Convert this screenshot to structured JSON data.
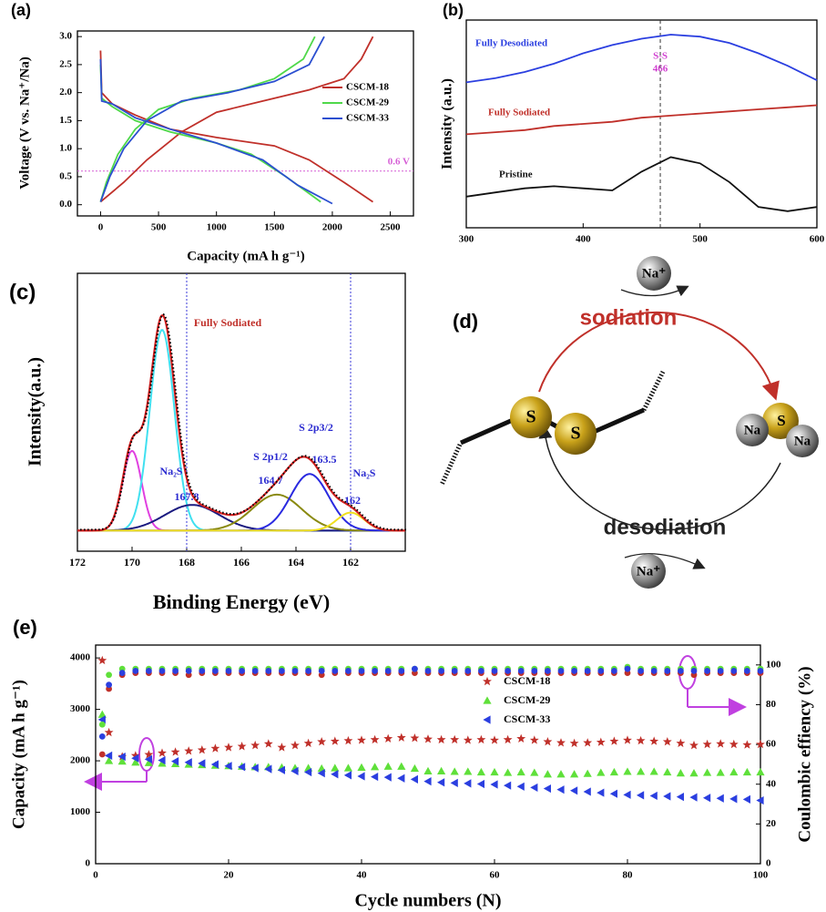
{
  "chart_data": [
    {
      "type": "line",
      "panel_label": "(a)",
      "xlabel": "Capacity (mA h g⁻¹)",
      "ylabel": "Voltage (V vs. Na⁺/Na)",
      "xlim": [
        -200,
        2700
      ],
      "ylim": [
        -0.2,
        3.1
      ],
      "xticks": [
        0,
        500,
        1000,
        1500,
        2000,
        2500
      ],
      "yticks": [
        {
          "value": 0,
          "label": "0.0"
        },
        0.5,
        {
          "value": 1,
          "label": "1.0"
        },
        1.5,
        {
          "value": 2,
          "label": "2.0"
        },
        2.5,
        {
          "value": 3,
          "label": "3.0"
        }
      ],
      "hline": {
        "value": 0.6,
        "label": "0.6 V",
        "color": "#d65fd6"
      },
      "legend": "upper right",
      "series": [
        {
          "name": "CSCM-18",
          "color": "#c0302a",
          "x": [
            0,
            10,
            100,
            300,
            600,
            1000,
            1500,
            1800,
            2100,
            2350,
            null,
            0,
            200,
            400,
            700,
            1000,
            1400,
            1800,
            2100,
            2250,
            2350
          ],
          "values": [
            2.75,
            2.0,
            1.8,
            1.6,
            1.35,
            1.2,
            1.05,
            0.8,
            0.4,
            0.05,
            null,
            0.05,
            0.4,
            0.8,
            1.3,
            1.65,
            1.85,
            2.05,
            2.25,
            2.6,
            3.0
          ]
        },
        {
          "name": "CSCM-29",
          "color": "#4fd84a",
          "x": [
            0,
            10,
            100,
            300,
            600,
            1000,
            1300,
            1600,
            1900,
            null,
            0,
            50,
            150,
            300,
            500,
            800,
            1200,
            1500,
            1750,
            1850
          ],
          "values": [
            2.5,
            1.9,
            1.75,
            1.5,
            1.3,
            1.1,
            0.9,
            0.5,
            0.05,
            null,
            0.05,
            0.4,
            0.9,
            1.35,
            1.7,
            1.9,
            2.05,
            2.25,
            2.6,
            3.0
          ]
        },
        {
          "name": "CSCM-33",
          "color": "#2b4fd0",
          "x": [
            0,
            10,
            100,
            300,
            600,
            1000,
            1400,
            1700,
            2000,
            null,
            0,
            80,
            200,
            400,
            700,
            1100,
            1500,
            1800,
            1930
          ],
          "values": [
            2.6,
            1.85,
            1.8,
            1.55,
            1.35,
            1.1,
            0.8,
            0.35,
            0.02,
            null,
            0.05,
            0.5,
            1.0,
            1.5,
            1.85,
            2.0,
            2.2,
            2.5,
            3.0
          ]
        }
      ]
    },
    {
      "type": "line",
      "panel_label": "(b)",
      "ylabel": "Intensity (a.u.)",
      "xlim": [
        300,
        600
      ],
      "ylim": [
        0,
        10
      ],
      "xticks": [
        300,
        400,
        500,
        600
      ],
      "annotation": {
        "x": 466,
        "label": "S-S",
        "color": "#d040d0"
      },
      "x": [
        300,
        325,
        350,
        375,
        400,
        425,
        450,
        475,
        500,
        525,
        550,
        575,
        600
      ],
      "series": [
        {
          "name": "Fully Desodiated",
          "color": "#2b3fe0",
          "values": [
            7.0,
            7.2,
            7.5,
            7.9,
            8.4,
            8.8,
            9.1,
            9.3,
            9.2,
            8.9,
            8.4,
            7.8,
            7.1
          ]
        },
        {
          "name": "Fully Sodiated",
          "color": "#c0302a",
          "values": [
            4.5,
            4.6,
            4.7,
            4.9,
            5.0,
            5.1,
            5.3,
            5.4,
            5.5,
            5.6,
            5.7,
            5.8,
            5.9
          ]
        },
        {
          "name": "Pristine",
          "color": "#111111",
          "values": [
            1.5,
            1.7,
            1.9,
            2.0,
            1.9,
            1.8,
            2.7,
            3.4,
            3.1,
            2.2,
            1.0,
            0.8,
            1.0
          ]
        }
      ]
    },
    {
      "type": "peaks",
      "panel_label": "(c)",
      "xlabel": "Binding Energy (eV)",
      "ylabel": "Intensity(a.u.)",
      "xlim": [
        172,
        160
      ],
      "ylim": [
        -8,
        100
      ],
      "xticks": [
        172,
        170,
        168,
        166,
        164,
        162
      ],
      "annotation": "Fully Sodiated",
      "fit_color": "#d42020",
      "data_color": "#000000",
      "vlines": [
        168,
        162
      ],
      "vline_color": "#3a3ad8",
      "series": [
        {
          "color": "#e040e0",
          "center": 170.0,
          "height": 31,
          "width": 0.35
        },
        {
          "color": "#40e0f0",
          "center": 168.9,
          "height": 78,
          "width": 0.45
        },
        {
          "name": "Na₂S",
          "color": "#1a1a80",
          "center": 167.8,
          "height": 10,
          "width": 1.0
        },
        {
          "name": "S 2p1/2",
          "color": "#8a8a10",
          "center": 164.7,
          "height": 14,
          "width": 0.9
        },
        {
          "name": "S 2p3/2",
          "color": "#2a2ae0",
          "center": 163.5,
          "height": 22,
          "width": 0.7
        },
        {
          "name": "Na₂S",
          "color": "#f0e020",
          "center": 162,
          "height": 7,
          "width": 0.5
        }
      ]
    },
    {
      "type": "scatter",
      "panel_label": "(e)",
      "xlabel": "Cycle numbers (N)",
      "ylabel": "Capacity (mA h g⁻¹)",
      "y2label": "Coulombic effiency (%)",
      "xlim": [
        0,
        100
      ],
      "ylim": [
        0,
        4250
      ],
      "y2lim": [
        0,
        110
      ],
      "xticks": [
        0,
        20,
        40,
        60,
        80,
        100
      ],
      "yticks": [
        0,
        1000,
        2000,
        3000,
        4000
      ],
      "y2ticks": [
        0,
        20,
        40,
        60,
        80,
        100
      ],
      "legend": "upper right",
      "x": [
        1,
        2,
        4,
        6,
        8,
        10,
        12,
        14,
        16,
        18,
        20,
        22,
        24,
        26,
        28,
        30,
        32,
        34,
        36,
        38,
        40,
        42,
        44,
        46,
        48,
        50,
        52,
        54,
        56,
        58,
        60,
        62,
        64,
        66,
        68,
        70,
        72,
        74,
        76,
        78,
        80,
        82,
        84,
        86,
        88,
        90,
        92,
        94,
        96,
        98,
        100
      ],
      "series": [
        {
          "name": "CSCM-18",
          "color": "#c0302a",
          "marker": "star",
          "values": [
            3950,
            2550,
            2080,
            2100,
            2120,
            2150,
            2170,
            2190,
            2210,
            2240,
            2260,
            2280,
            2300,
            2330,
            2260,
            2300,
            2340,
            2370,
            2380,
            2390,
            2400,
            2410,
            2430,
            2450,
            2440,
            2420,
            2410,
            2410,
            2400,
            2410,
            2400,
            2410,
            2430,
            2400,
            2370,
            2350,
            2340,
            2350,
            2360,
            2380,
            2400,
            2390,
            2380,
            2370,
            2340,
            2300,
            2320,
            2330,
            2320,
            2310,
            2320
          ]
        },
        {
          "name": "CSCM-29",
          "color": "#5fe03a",
          "marker": "triangle",
          "values": [
            2900,
            2000,
            1990,
            1970,
            1960,
            1950,
            1940,
            1930,
            1920,
            1910,
            1900,
            1890,
            1880,
            1880,
            1870,
            1860,
            1860,
            1850,
            1860,
            1860,
            1870,
            1880,
            1890,
            1890,
            1850,
            1800,
            1800,
            1790,
            1790,
            1780,
            1780,
            1770,
            1780,
            1770,
            1740,
            1740,
            1740,
            1750,
            1770,
            1780,
            1790,
            1790,
            1790,
            1780,
            1760,
            1760,
            1770,
            1770,
            1780,
            1780,
            1780
          ]
        },
        {
          "name": "CSCM-33",
          "color": "#2b3fe0",
          "marker": "left-triangle",
          "values": [
            2800,
            2100,
            2080,
            2050,
            2030,
            2010,
            1990,
            1970,
            1950,
            1930,
            1900,
            1880,
            1860,
            1840,
            1820,
            1800,
            1780,
            1760,
            1740,
            1720,
            1700,
            1690,
            1680,
            1660,
            1640,
            1600,
            1580,
            1570,
            1560,
            1550,
            1540,
            1520,
            1500,
            1480,
            1460,
            1440,
            1420,
            1400,
            1380,
            1360,
            1340,
            1330,
            1320,
            1310,
            1300,
            1290,
            1280,
            1270,
            1260,
            1250,
            1230
          ]
        },
        {
          "color": "#c0302a",
          "marker": "circle",
          "axis": "y2",
          "values": [
            55,
            88,
            95,
            96,
            96,
            96,
            96,
            95,
            96,
            96,
            96,
            96,
            96,
            96,
            96,
            96,
            96,
            95,
            96,
            96,
            96,
            96,
            96,
            96,
            96,
            96,
            96,
            96,
            96,
            96,
            96,
            96,
            96,
            96,
            96,
            96,
            96,
            96,
            96,
            96,
            96,
            96,
            96,
            96,
            96,
            95,
            96,
            96,
            96,
            96,
            96
          ]
        },
        {
          "color": "#5fe03a",
          "marker": "circle",
          "axis": "y2",
          "values": [
            70,
            95,
            98,
            98,
            98,
            98,
            98,
            98,
            98,
            98,
            98,
            98,
            98,
            98,
            98,
            98,
            98,
            98,
            98,
            98,
            98,
            98,
            98,
            98,
            98,
            98,
            98,
            98,
            98,
            98,
            98,
            98,
            98,
            98,
            98,
            98,
            98,
            98,
            98,
            98,
            99,
            98,
            98,
            98,
            98,
            98,
            98,
            98,
            98,
            98,
            98
          ]
        },
        {
          "color": "#2b3fe0",
          "marker": "circle",
          "axis": "y2",
          "values": [
            64,
            90,
            96,
            97,
            97,
            97,
            97,
            97,
            97,
            97,
            97,
            97,
            97,
            97,
            97,
            97,
            97,
            97,
            97,
            97,
            97,
            97,
            97,
            97,
            98,
            97,
            97,
            97,
            97,
            97,
            97,
            97,
            97,
            97,
            97,
            97,
            97,
            97,
            97,
            97,
            98,
            97,
            97,
            97,
            97,
            97,
            97,
            97,
            97,
            97,
            97
          ]
        }
      ]
    }
  ],
  "diagram": {
    "label": "(d)",
    "top_ion": "Na⁺",
    "sodiation": "sodiation",
    "desodiation": "desodiation",
    "bottom_ion": "Na⁺",
    "s_left": "S",
    "s_right": "S",
    "product": {
      "na_left": "Na",
      "s": "S",
      "na_right": "Na"
    }
  }
}
